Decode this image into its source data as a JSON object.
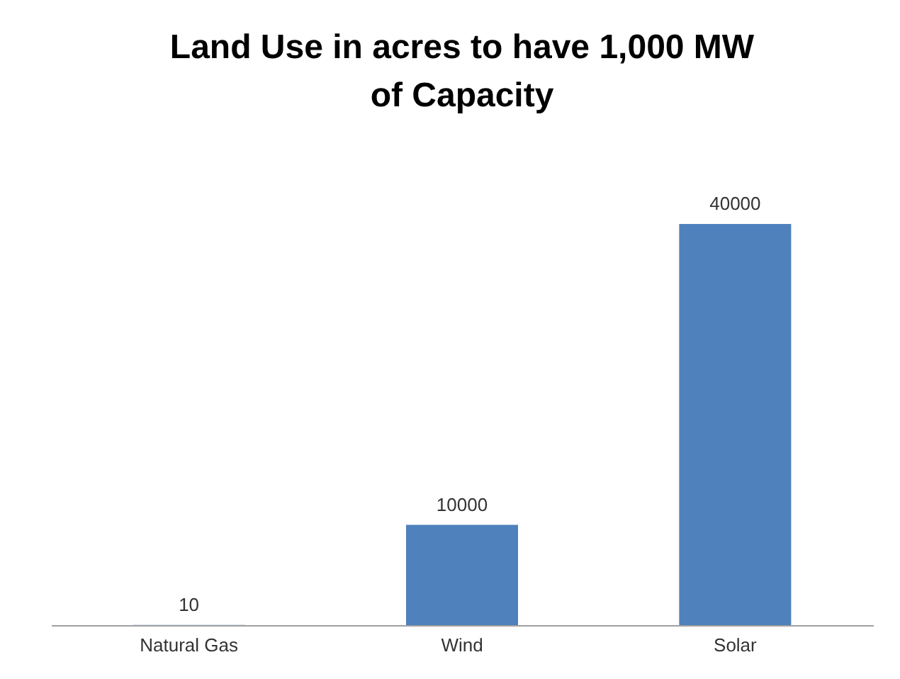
{
  "chart_data": {
    "type": "bar",
    "title": "Land Use in acres to have 1,000 MW of Capacity",
    "categories": [
      "Natural Gas",
      "Wind",
      "Solar"
    ],
    "values": [
      10,
      10000,
      40000
    ],
    "color": "#4f81bd",
    "data_labels": true
  }
}
